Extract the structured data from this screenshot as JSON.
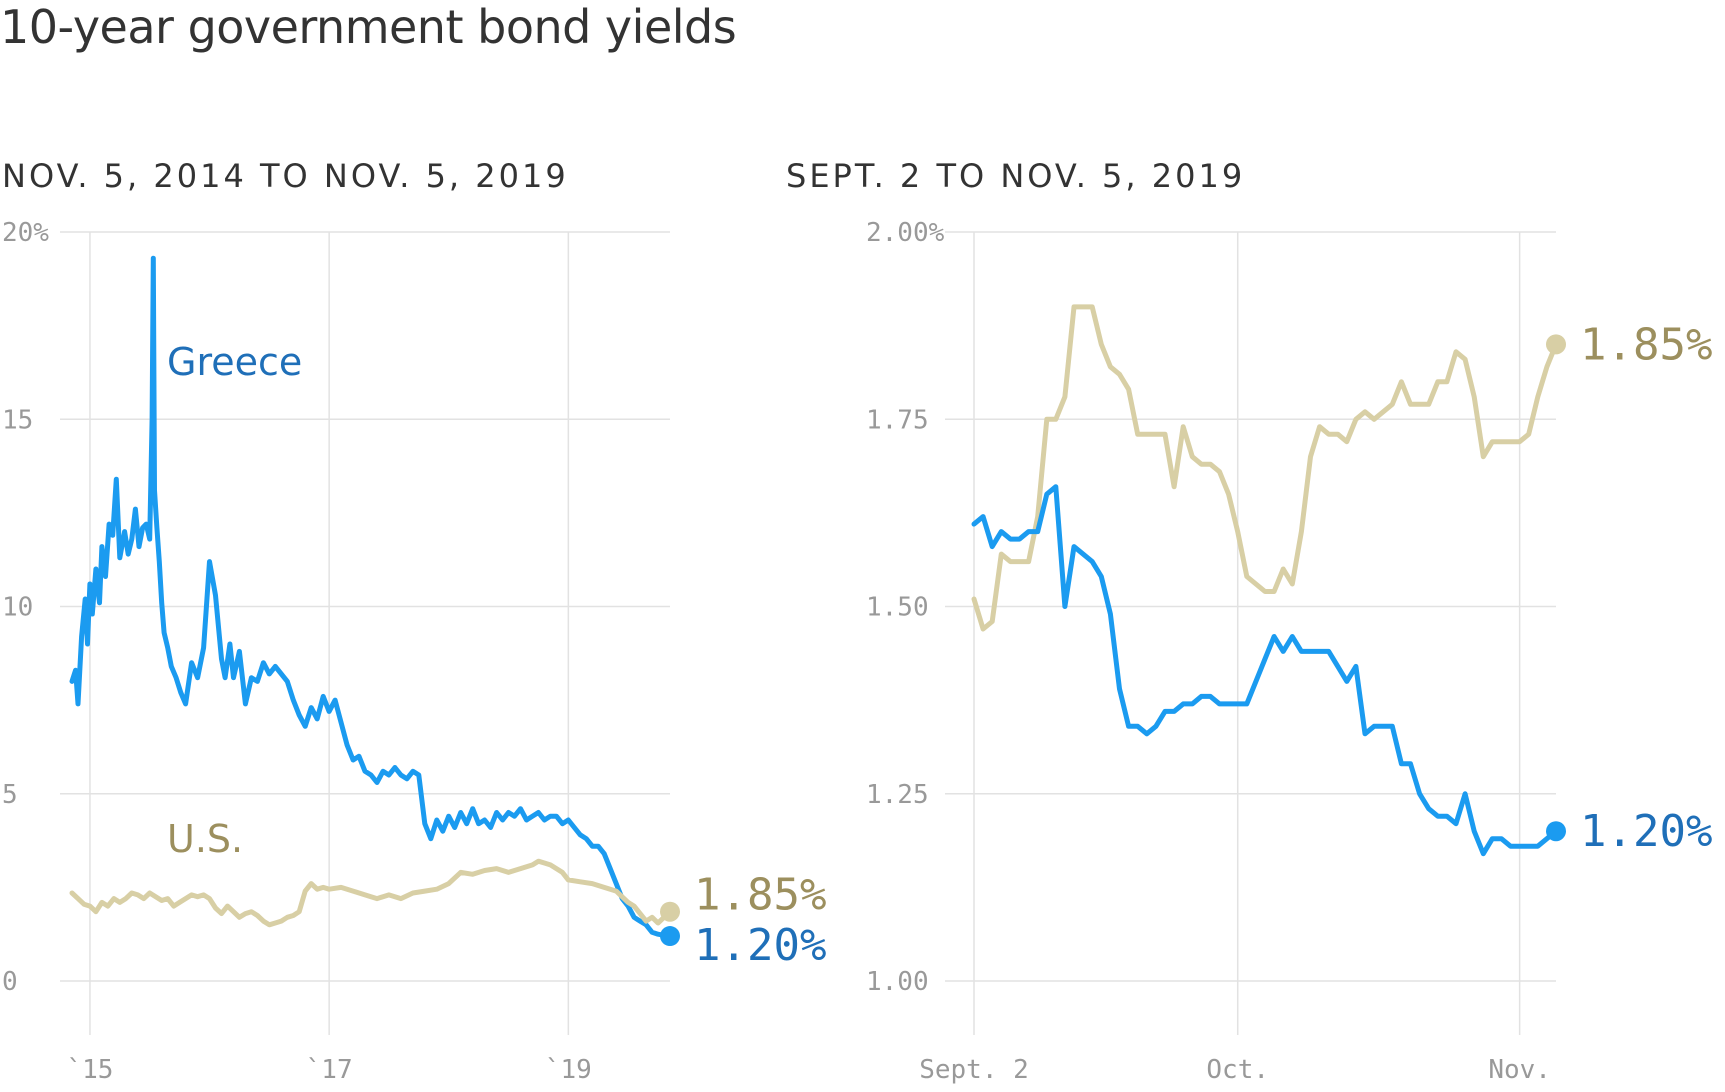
{
  "title": "10-year government bond yields",
  "colors": {
    "greece": "#1b9bf0",
    "greece_text": "#1f6fb8",
    "us": "#d8cfa5",
    "us_text": "#9c8f5e",
    "grid": "#e2e2e2",
    "tick": "#999999"
  },
  "chart_data": [
    {
      "type": "line",
      "title": "NOV. 5, 2014 TO NOV. 5, 2019",
      "xlim": [
        2014.85,
        2019.85
      ],
      "ylim": [
        0,
        20
      ],
      "yticks": [
        {
          "value": 0,
          "label": "0"
        },
        {
          "value": 5,
          "label": "5"
        },
        {
          "value": 10,
          "label": "10"
        },
        {
          "value": 15,
          "label": "15"
        },
        {
          "value": 20,
          "label": "20%"
        }
      ],
      "xticks": [
        {
          "value": 2015,
          "label": "`15"
        },
        {
          "value": 2017,
          "label": "`17"
        },
        {
          "value": 2019,
          "label": "`19"
        }
      ],
      "series": [
        {
          "name": "Greece",
          "end_label": "1.20%",
          "x": [
            2014.85,
            2014.88,
            2014.9,
            2014.93,
            2014.96,
            2014.98,
            2015.0,
            2015.02,
            2015.05,
            2015.08,
            2015.1,
            2015.13,
            2015.16,
            2015.19,
            2015.22,
            2015.25,
            2015.29,
            2015.32,
            2015.35,
            2015.38,
            2015.41,
            2015.44,
            2015.47,
            2015.5,
            2015.52,
            2015.53,
            2015.54,
            2015.56,
            2015.58,
            2015.6,
            2015.62,
            2015.65,
            2015.68,
            2015.72,
            2015.76,
            2015.8,
            2015.85,
            2015.9,
            2015.95,
            2016.0,
            2016.05,
            2016.1,
            2016.13,
            2016.17,
            2016.2,
            2016.25,
            2016.3,
            2016.35,
            2016.4,
            2016.45,
            2016.5,
            2016.55,
            2016.6,
            2016.65,
            2016.7,
            2016.75,
            2016.8,
            2016.85,
            2016.9,
            2016.95,
            2017.0,
            2017.05,
            2017.1,
            2017.15,
            2017.2,
            2017.25,
            2017.3,
            2017.35,
            2017.4,
            2017.45,
            2017.5,
            2017.55,
            2017.6,
            2017.65,
            2017.7,
            2017.75,
            2017.8,
            2017.85,
            2017.9,
            2017.95,
            2018.0,
            2018.05,
            2018.1,
            2018.15,
            2018.2,
            2018.25,
            2018.3,
            2018.35,
            2018.4,
            2018.45,
            2018.5,
            2018.55,
            2018.6,
            2018.65,
            2018.7,
            2018.75,
            2018.8,
            2018.85,
            2018.9,
            2018.95,
            2019.0,
            2019.05,
            2019.1,
            2019.15,
            2019.2,
            2019.25,
            2019.3,
            2019.35,
            2019.4,
            2019.45,
            2019.5,
            2019.55,
            2019.6,
            2019.65,
            2019.7,
            2019.75,
            2019.8,
            2019.85
          ],
          "y": [
            8.0,
            8.3,
            7.4,
            9.2,
            10.2,
            9.0,
            10.6,
            9.8,
            11.0,
            10.1,
            11.6,
            10.8,
            12.2,
            11.9,
            13.4,
            11.3,
            12.0,
            11.4,
            11.8,
            12.6,
            11.6,
            12.1,
            12.2,
            11.8,
            15.0,
            19.3,
            13.1,
            12.1,
            11.2,
            10.1,
            9.3,
            8.9,
            8.4,
            8.1,
            7.7,
            7.4,
            8.5,
            8.1,
            8.9,
            11.2,
            10.3,
            8.6,
            8.1,
            9.0,
            8.1,
            8.8,
            7.4,
            8.1,
            8.0,
            8.5,
            8.2,
            8.4,
            8.2,
            8.0,
            7.5,
            7.1,
            6.8,
            7.3,
            7.0,
            7.6,
            7.2,
            7.5,
            6.9,
            6.3,
            5.9,
            6.0,
            5.6,
            5.5,
            5.3,
            5.6,
            5.5,
            5.7,
            5.5,
            5.4,
            5.6,
            5.5,
            4.2,
            3.8,
            4.3,
            4.0,
            4.4,
            4.1,
            4.5,
            4.2,
            4.6,
            4.2,
            4.3,
            4.1,
            4.5,
            4.3,
            4.5,
            4.4,
            4.6,
            4.3,
            4.4,
            4.5,
            4.3,
            4.4,
            4.4,
            4.2,
            4.3,
            4.1,
            3.9,
            3.8,
            3.6,
            3.6,
            3.4,
            3.0,
            2.6,
            2.2,
            2.0,
            1.7,
            1.6,
            1.5,
            1.3,
            1.25,
            1.22,
            1.2
          ]
        },
        {
          "name": "U.S.",
          "end_label": "1.85%",
          "x": [
            2014.85,
            2014.9,
            2014.95,
            2015.0,
            2015.05,
            2015.1,
            2015.15,
            2015.2,
            2015.25,
            2015.3,
            2015.35,
            2015.4,
            2015.45,
            2015.5,
            2015.55,
            2015.6,
            2015.65,
            2015.7,
            2015.75,
            2015.8,
            2015.85,
            2015.9,
            2015.95,
            2016.0,
            2016.05,
            2016.1,
            2016.15,
            2016.2,
            2016.25,
            2016.3,
            2016.35,
            2016.4,
            2016.45,
            2016.5,
            2016.55,
            2016.6,
            2016.65,
            2016.7,
            2016.75,
            2016.8,
            2016.85,
            2016.9,
            2016.95,
            2017.0,
            2017.1,
            2017.2,
            2017.3,
            2017.4,
            2017.5,
            2017.6,
            2017.7,
            2017.8,
            2017.9,
            2018.0,
            2018.1,
            2018.2,
            2018.3,
            2018.4,
            2018.5,
            2018.6,
            2018.7,
            2018.75,
            2018.8,
            2018.85,
            2018.9,
            2018.95,
            2019.0,
            2019.1,
            2019.2,
            2019.3,
            2019.4,
            2019.5,
            2019.55,
            2019.6,
            2019.65,
            2019.7,
            2019.75,
            2019.8,
            2019.85
          ],
          "y": [
            2.35,
            2.2,
            2.05,
            2.0,
            1.85,
            2.1,
            2.0,
            2.2,
            2.1,
            2.2,
            2.35,
            2.3,
            2.2,
            2.35,
            2.25,
            2.15,
            2.2,
            2.0,
            2.1,
            2.2,
            2.3,
            2.25,
            2.3,
            2.2,
            1.95,
            1.8,
            2.0,
            1.85,
            1.7,
            1.8,
            1.85,
            1.75,
            1.6,
            1.5,
            1.55,
            1.6,
            1.7,
            1.75,
            1.85,
            2.4,
            2.6,
            2.45,
            2.5,
            2.45,
            2.5,
            2.4,
            2.3,
            2.2,
            2.3,
            2.2,
            2.35,
            2.4,
            2.45,
            2.6,
            2.9,
            2.85,
            2.95,
            3.0,
            2.9,
            3.0,
            3.1,
            3.2,
            3.15,
            3.1,
            3.0,
            2.9,
            2.7,
            2.65,
            2.6,
            2.5,
            2.4,
            2.1,
            2.0,
            1.8,
            1.6,
            1.7,
            1.55,
            1.7,
            1.85
          ]
        }
      ],
      "labels": {
        "greece": "Greece",
        "us": "U.S."
      }
    },
    {
      "type": "line",
      "title": "SEPT. 2 TO NOV. 5, 2019",
      "xlim": [
        0,
        64
      ],
      "ylim": [
        1.0,
        2.0
      ],
      "yticks": [
        {
          "value": 1.0,
          "label": "1.00"
        },
        {
          "value": 1.25,
          "label": "1.25"
        },
        {
          "value": 1.5,
          "label": "1.50"
        },
        {
          "value": 1.75,
          "label": "1.75"
        },
        {
          "value": 2.0,
          "label": "2.00%"
        }
      ],
      "xticks": [
        {
          "value": 0,
          "label": "Sept. 2"
        },
        {
          "value": 29,
          "label": "Oct."
        },
        {
          "value": 60,
          "label": "Nov."
        }
      ],
      "series": [
        {
          "name": "U.S.",
          "end_label": "1.85%",
          "x": [
            0,
            1,
            2,
            3,
            4,
            5,
            6,
            7,
            8,
            9,
            10,
            11,
            12,
            13,
            14,
            15,
            16,
            17,
            18,
            19,
            20,
            21,
            22,
            23,
            24,
            25,
            26,
            27,
            28,
            29,
            30,
            31,
            32,
            33,
            34,
            35,
            36,
            37,
            38,
            39,
            40,
            41,
            42,
            43,
            44,
            45,
            46,
            47,
            48,
            49,
            50,
            51,
            52,
            53,
            54,
            55,
            56,
            57,
            58,
            59,
            60,
            61,
            62,
            63,
            64
          ],
          "y": [
            1.51,
            1.47,
            1.48,
            1.57,
            1.56,
            1.56,
            1.56,
            1.62,
            1.75,
            1.75,
            1.78,
            1.9,
            1.9,
            1.9,
            1.85,
            1.82,
            1.81,
            1.79,
            1.73,
            1.73,
            1.73,
            1.73,
            1.66,
            1.74,
            1.7,
            1.69,
            1.69,
            1.68,
            1.65,
            1.6,
            1.54,
            1.53,
            1.52,
            1.52,
            1.55,
            1.53,
            1.6,
            1.7,
            1.74,
            1.73,
            1.73,
            1.72,
            1.75,
            1.76,
            1.75,
            1.76,
            1.77,
            1.8,
            1.77,
            1.77,
            1.77,
            1.8,
            1.8,
            1.84,
            1.83,
            1.78,
            1.7,
            1.72,
            1.72,
            1.72,
            1.72,
            1.73,
            1.78,
            1.82,
            1.85
          ]
        },
        {
          "name": "Greece",
          "end_label": "1.20%",
          "x": [
            0,
            1,
            2,
            3,
            4,
            5,
            6,
            7,
            8,
            9,
            10,
            11,
            12,
            13,
            14,
            15,
            16,
            17,
            18,
            19,
            20,
            21,
            22,
            23,
            24,
            25,
            26,
            27,
            28,
            29,
            30,
            31,
            32,
            33,
            34,
            35,
            36,
            37,
            38,
            39,
            40,
            41,
            42,
            43,
            44,
            45,
            46,
            47,
            48,
            49,
            50,
            51,
            52,
            53,
            54,
            55,
            56,
            57,
            58,
            59,
            60,
            61,
            62,
            63,
            64
          ],
          "y": [
            1.61,
            1.62,
            1.58,
            1.6,
            1.59,
            1.59,
            1.6,
            1.6,
            1.65,
            1.66,
            1.5,
            1.58,
            1.57,
            1.56,
            1.54,
            1.49,
            1.39,
            1.34,
            1.34,
            1.33,
            1.34,
            1.36,
            1.36,
            1.37,
            1.37,
            1.38,
            1.38,
            1.37,
            1.37,
            1.37,
            1.37,
            1.4,
            1.43,
            1.46,
            1.44,
            1.46,
            1.44,
            1.44,
            1.44,
            1.44,
            1.42,
            1.4,
            1.42,
            1.33,
            1.34,
            1.34,
            1.34,
            1.29,
            1.29,
            1.25,
            1.23,
            1.22,
            1.22,
            1.21,
            1.25,
            1.2,
            1.17,
            1.19,
            1.19,
            1.18,
            1.18,
            1.18,
            1.18,
            1.19,
            1.2
          ]
        }
      ]
    }
  ]
}
